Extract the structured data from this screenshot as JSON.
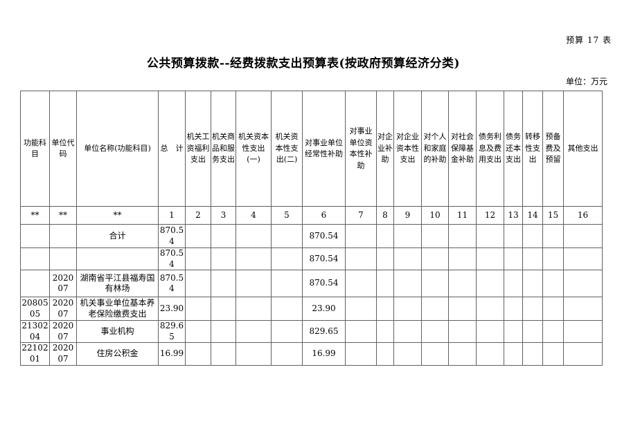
{
  "page": {
    "sheet_tag": "预算 17 表",
    "title": "公共预算拨款--经费拨款支出预算表(按政府预算经济分类)",
    "unit_note": "单位：万元"
  },
  "table": {
    "columns": [
      "功能科目",
      "单位代码",
      "单位名称(功能科目)",
      "总　计",
      "机关工资福利支出",
      "机关商品和服务支出",
      "机关资本性支出(一)",
      "机关资本性支出(二)",
      "对事业单位经常性补助",
      "对事业单位资本性补助",
      "对企业补助",
      "对企业资本性支出",
      "对个人和家庭的补助",
      "对社会保障基金补助",
      "债务利息及费用支出",
      "债务还本支出",
      "转移性支出",
      "预备费及预留",
      "其他支出"
    ],
    "index_row": [
      "**",
      "**",
      "**",
      "1",
      "2",
      "3",
      "4",
      "5",
      "6",
      "7",
      "8",
      "9",
      "10",
      "11",
      "12",
      "13",
      "14",
      "15",
      "16"
    ],
    "rows": [
      [
        "",
        "",
        "合计",
        "870.54",
        "",
        "",
        "",
        "",
        "870.54",
        "",
        "",
        "",
        "",
        "",
        "",
        "",
        "",
        "",
        ""
      ],
      [
        "",
        "",
        "",
        "870.54",
        "",
        "",
        "",
        "",
        "870.54",
        "",
        "",
        "",
        "",
        "",
        "",
        "",
        "",
        "",
        ""
      ],
      [
        "",
        "202007",
        "湖南省平江县福寿国有林场",
        "870.54",
        "",
        "",
        "",
        "",
        "870.54",
        "",
        "",
        "",
        "",
        "",
        "",
        "",
        "",
        "",
        ""
      ],
      [
        "2080505",
        "202007",
        "机关事业单位基本养老保险缴费支出",
        "23.90",
        "",
        "",
        "",
        "",
        "23.90",
        "",
        "",
        "",
        "",
        "",
        "",
        "",
        "",
        "",
        ""
      ],
      [
        "2130204",
        "202007",
        "事业机构",
        "829.65",
        "",
        "",
        "",
        "",
        "829.65",
        "",
        "",
        "",
        "",
        "",
        "",
        "",
        "",
        "",
        ""
      ],
      [
        "2210201",
        "202007",
        "住房公积金",
        "16.99",
        "",
        "",
        "",
        "",
        "16.99",
        "",
        "",
        "",
        "",
        "",
        "",
        "",
        "",
        "",
        ""
      ]
    ]
  }
}
